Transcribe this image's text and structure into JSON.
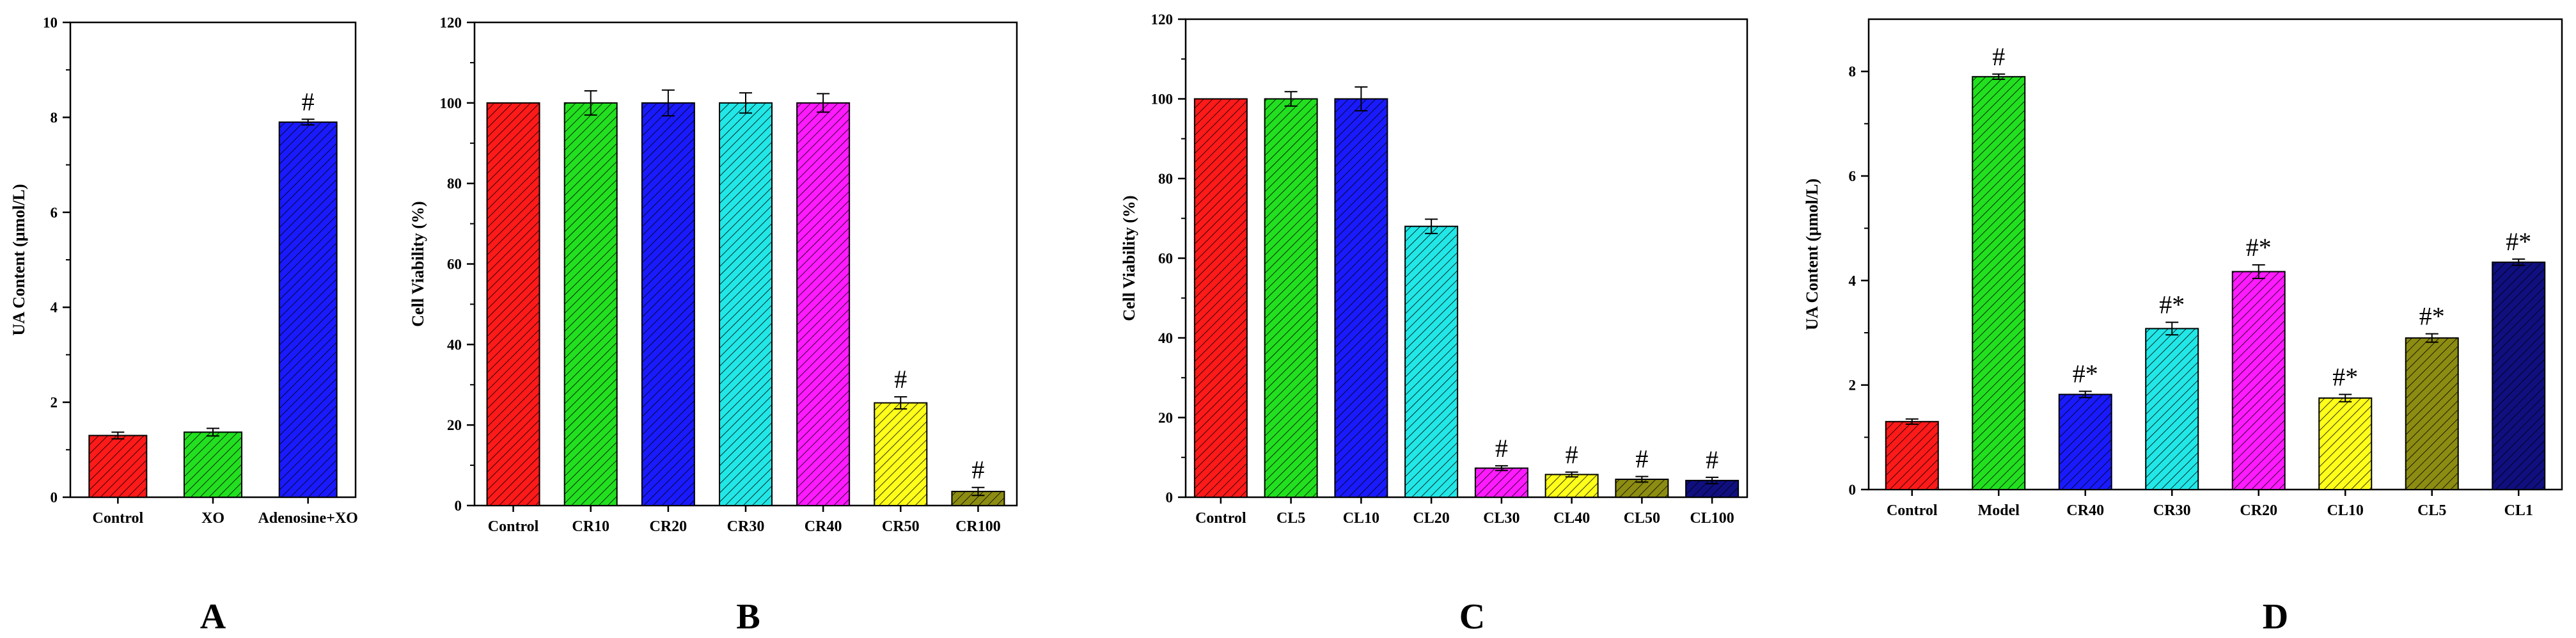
{
  "figure": {
    "panel_letters": [
      "A",
      "B",
      "C",
      "D"
    ]
  },
  "colors": {
    "red": "#ff1a1a",
    "green": "#22e01f",
    "blue": "#1a1aff",
    "cyan": "#22e7e7",
    "magenta": "#ff1aff",
    "yellow": "#ffff1a",
    "olive": "#8c8c12",
    "navy": "#0f0f80"
  },
  "chart_data": [
    {
      "panel": "A",
      "type": "bar",
      "title": "",
      "xlabel": "",
      "ylabel": "UA Content (μmol/L)",
      "ylim": [
        0,
        10
      ],
      "yticks": [
        0,
        2,
        4,
        6,
        8,
        10
      ],
      "categories": [
        "Control",
        "XO",
        "Adenosine+XO"
      ],
      "values": [
        1.3,
        1.37,
        7.9
      ],
      "errors": [
        0.07,
        0.08,
        0.06
      ],
      "annotations": [
        "",
        "",
        "#"
      ],
      "colors": [
        "#ff1a1a",
        "#22e01f",
        "#1a1aff"
      ]
    },
    {
      "panel": "B",
      "type": "bar",
      "title": "",
      "xlabel": "",
      "ylabel": "Cell Viability (%)",
      "ylim": [
        0,
        120
      ],
      "yticks": [
        0,
        20,
        40,
        60,
        80,
        100,
        120
      ],
      "categories": [
        "Control",
        "CR10",
        "CR20",
        "CR30",
        "CR40",
        "CR50",
        "CR100"
      ],
      "values": [
        100,
        100,
        100,
        100,
        100,
        25.5,
        3.5
      ],
      "errors": [
        0,
        3.0,
        3.2,
        2.5,
        2.3,
        1.5,
        1.0
      ],
      "annotations": [
        "",
        "",
        "",
        "",
        "",
        "#",
        "#"
      ],
      "colors": [
        "#ff1a1a",
        "#22e01f",
        "#1a1aff",
        "#22e7e7",
        "#ff1aff",
        "#ffff1a",
        "#8c8c12"
      ]
    },
    {
      "panel": "C",
      "type": "bar",
      "title": "",
      "xlabel": "",
      "ylabel": "Cell Viability (%)",
      "ylim": [
        0,
        120
      ],
      "yticks": [
        0,
        20,
        40,
        60,
        80,
        100,
        120
      ],
      "categories": [
        "Control",
        "CL5",
        "CL10",
        "CL20",
        "CL30",
        "CL40",
        "CL50",
        "CL100"
      ],
      "values": [
        100,
        100,
        100,
        68,
        7.3,
        5.7,
        4.5,
        4.2
      ],
      "errors": [
        0,
        1.8,
        3.0,
        1.8,
        0.6,
        0.6,
        0.7,
        0.8
      ],
      "annotations": [
        "",
        "",
        "",
        "",
        "#",
        "#",
        "#",
        "#"
      ],
      "colors": [
        "#ff1a1a",
        "#22e01f",
        "#1a1aff",
        "#22e7e7",
        "#ff1aff",
        "#ffff1a",
        "#8c8c12",
        "#0f0f80"
      ]
    },
    {
      "panel": "D",
      "type": "bar",
      "title": "",
      "xlabel": "",
      "ylabel": "UA Content (μmol/L)",
      "ylim": [
        0,
        9
      ],
      "yticks": [
        0,
        2,
        4,
        6,
        8
      ],
      "categories": [
        "Control",
        "Model",
        "CR40",
        "CR30",
        "CR20",
        "CL10",
        "CL5",
        "CL1"
      ],
      "values": [
        1.3,
        7.9,
        1.82,
        3.08,
        4.17,
        1.75,
        2.9,
        4.35
      ],
      "errors": [
        0.05,
        0.05,
        0.06,
        0.12,
        0.13,
        0.07,
        0.08,
        0.06
      ],
      "annotations": [
        "",
        "#",
        "#*",
        "#*",
        "#*",
        "#*",
        "#*",
        "#*"
      ],
      "colors": [
        "#ff1a1a",
        "#22e01f",
        "#1a1aff",
        "#22e7e7",
        "#ff1aff",
        "#ffff1a",
        "#8c8c12",
        "#0f0f80"
      ]
    }
  ]
}
